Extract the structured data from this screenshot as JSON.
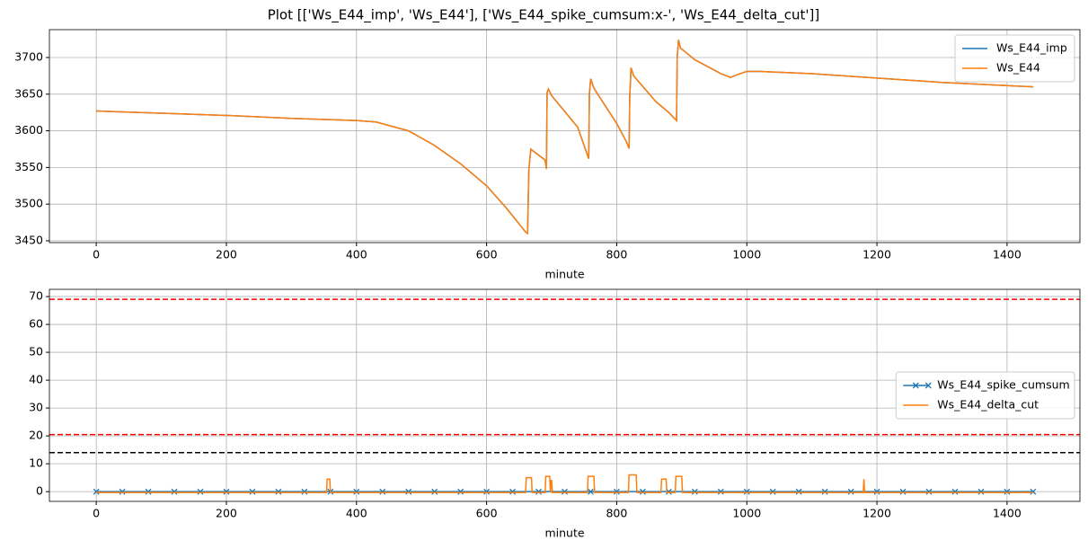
{
  "title": "Plot [['Ws_E44_imp', 'Ws_E44'], ['Ws_E44_spike_cumsum:x-', 'Ws_E44_delta_cut']]",
  "chart_data": [
    {
      "type": "line",
      "xlabel": "minute",
      "grid": true,
      "legend": "upper right",
      "xlim": [
        -72,
        1512
      ],
      "ylim": [
        3447.5,
        3738
      ],
      "xticks": [
        0,
        200,
        400,
        600,
        800,
        1000,
        1200,
        1400
      ],
      "yticks": [
        3450,
        3500,
        3550,
        3600,
        3650,
        3700
      ],
      "x": [
        0,
        100,
        200,
        300,
        400,
        430,
        480,
        520,
        560,
        600,
        630,
        660,
        663,
        665,
        668,
        690,
        692,
        693,
        695,
        700,
        740,
        757,
        758,
        760,
        765,
        800,
        815,
        819,
        820,
        822,
        826,
        860,
        880,
        892,
        893,
        895,
        898,
        920,
        960,
        975,
        990,
        1000,
        1020,
        1100,
        1200,
        1300,
        1440
      ],
      "series": [
        {
          "name": "Ws_E44_imp",
          "color": "#1f77b4",
          "values": [
            3627,
            3624,
            3621,
            3617,
            3614,
            3612,
            3600,
            3580,
            3555,
            3525,
            3495,
            3462,
            3460,
            3548,
            3575,
            3560,
            3548,
            3652,
            3657,
            3648,
            3605,
            3562,
            3650,
            3671,
            3658,
            3610,
            3585,
            3576,
            3645,
            3686,
            3675,
            3640,
            3625,
            3614,
            3700,
            3724,
            3713,
            3697,
            3678,
            3673,
            3678,
            3681,
            3681,
            3678,
            3672,
            3666,
            3660
          ]
        },
        {
          "name": "Ws_E44",
          "color": "#ff7f0e",
          "values": [
            3627,
            3624,
            3621,
            3617,
            3614,
            3612,
            3600,
            3580,
            3555,
            3525,
            3495,
            3462,
            3460,
            3548,
            3575,
            3560,
            3548,
            3652,
            3657,
            3648,
            3605,
            3562,
            3650,
            3671,
            3658,
            3610,
            3585,
            3576,
            3645,
            3686,
            3675,
            3640,
            3625,
            3614,
            3700,
            3724,
            3713,
            3697,
            3678,
            3673,
            3678,
            3681,
            3681,
            3678,
            3672,
            3666,
            3660
          ]
        }
      ]
    },
    {
      "type": "line",
      "xlabel": "minute",
      "grid": true,
      "legend": "center right",
      "xlim": [
        -72,
        1512
      ],
      "ylim": [
        -3.5,
        72.6
      ],
      "xticks": [
        0,
        200,
        400,
        600,
        800,
        1000,
        1200,
        1400
      ],
      "yticks": [
        0,
        10,
        20,
        30,
        40,
        50,
        60,
        70
      ],
      "hlines": [
        {
          "value": 69,
          "color": "#ff0000"
        },
        {
          "value": 20.5,
          "color": "#ff0000"
        },
        {
          "value": 14,
          "color": "#000000"
        }
      ],
      "series": [
        {
          "name": "Ws_E44_spike_cumsum",
          "color": "#1f77b4",
          "marker": "x",
          "x": [
            0,
            40,
            80,
            120,
            160,
            200,
            240,
            280,
            320,
            360,
            400,
            440,
            480,
            520,
            560,
            600,
            640,
            680,
            720,
            760,
            800,
            840,
            880,
            920,
            960,
            1000,
            1040,
            1080,
            1120,
            1160,
            1200,
            1240,
            1280,
            1320,
            1360,
            1400,
            1440
          ],
          "values": [
            0,
            0,
            0,
            0,
            0,
            0,
            0,
            0,
            0,
            0,
            0,
            0,
            0,
            0,
            0,
            0,
            0,
            0,
            0,
            0,
            0,
            0,
            0,
            0,
            0,
            0,
            0,
            0,
            0,
            0,
            0,
            0,
            0,
            0,
            0,
            0,
            0
          ]
        },
        {
          "name": "Ws_E44_delta_cut",
          "color": "#ff7f0e",
          "x": [
            0,
            354,
            355,
            359,
            360,
            660,
            661,
            669,
            670,
            690,
            691,
            697,
            698,
            699,
            700,
            701,
            755,
            756,
            765,
            766,
            818,
            819,
            830,
            831,
            868,
            869,
            876,
            877,
            890,
            891,
            900,
            901,
            1179,
            1180,
            1181,
            1440
          ],
          "values": [
            -0.3,
            -0.3,
            4.5,
            4.5,
            -0.3,
            -0.3,
            5,
            5,
            -0.3,
            -0.3,
            5.5,
            5.5,
            -0.3,
            4,
            4,
            -0.3,
            -0.3,
            5.5,
            5.5,
            -0.3,
            -0.3,
            6,
            6,
            -0.3,
            -0.3,
            4.5,
            4.5,
            -0.3,
            -0.3,
            5.5,
            5.5,
            -0.3,
            -0.3,
            4.5,
            -0.3,
            -0.3
          ]
        }
      ]
    }
  ]
}
